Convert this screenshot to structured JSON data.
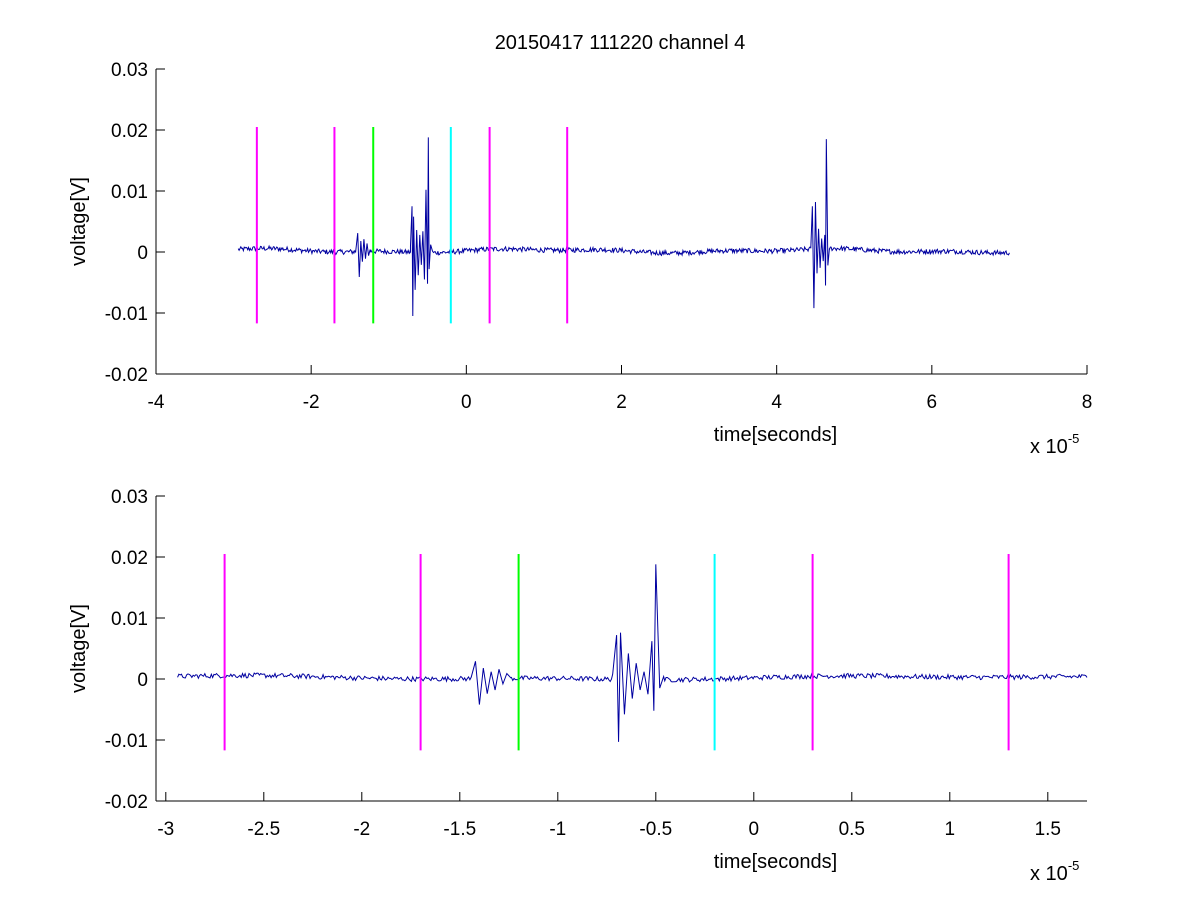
{
  "figure": {
    "title": "20150417 111220 channel 4"
  },
  "chart_data": [
    {
      "type": "line",
      "xlabel": "time[seconds]",
      "ylabel": "voltage[V]",
      "x_multiplier_label": "x 10",
      "x_multiplier_exponent": "-5",
      "xlim": [
        -4,
        8
      ],
      "ylim": [
        -0.02,
        0.03
      ],
      "x_ticks": [
        -4,
        -2,
        0,
        2,
        4,
        6,
        8
      ],
      "x_tick_labels": [
        "-4",
        "-2",
        "0",
        "2",
        "4",
        "6",
        "8"
      ],
      "y_ticks": [
        -0.02,
        -0.01,
        0,
        0.01,
        0.02,
        0.03
      ],
      "y_tick_labels": [
        "-0.02",
        "-0.01",
        "0",
        "0.01",
        "0.02",
        "0.03"
      ],
      "grid": false,
      "signal": {
        "color": "#0000a0",
        "x_range": [
          -2.94,
          7.0
        ],
        "baseline": 0.0002,
        "noise_amplitude": 0.0004,
        "bursts": [
          {
            "x": [
              -1.42,
              -1.4,
              -1.38,
              -1.36,
              -1.34,
              -1.32,
              -1.3,
              -1.28,
              -1.26,
              -1.24
            ],
            "y": [
              0.0008,
              0.0031,
              -0.0041,
              0.0018,
              -0.0016,
              0.0021,
              -0.0011,
              0.0014,
              -0.0006,
              0.0004
            ]
          },
          {
            "x": [
              -0.72,
              -0.7,
              -0.69,
              -0.68,
              -0.66,
              -0.64,
              -0.62,
              -0.6,
              -0.58,
              -0.56,
              -0.54,
              -0.52,
              -0.5,
              -0.49,
              -0.48,
              -0.46,
              -0.44
            ],
            "y": [
              0.0009,
              0.0075,
              -0.0105,
              0.0058,
              -0.0062,
              0.0036,
              -0.0038,
              0.0028,
              -0.0021,
              0.0034,
              -0.0045,
              0.0102,
              -0.0052,
              0.0188,
              -0.0028,
              0.0012,
              0.0003
            ]
          },
          {
            "x": [
              4.44,
              4.46,
              4.48,
              4.5,
              4.52,
              4.54,
              4.56,
              4.58,
              4.6,
              4.62,
              4.63,
              4.64,
              4.66,
              4.68
            ],
            "y": [
              0.0006,
              0.0075,
              -0.0092,
              0.0082,
              -0.0035,
              0.0038,
              -0.0026,
              0.0022,
              -0.0015,
              0.0028,
              -0.0055,
              0.0185,
              -0.0022,
              0.0006
            ]
          }
        ]
      },
      "markers": [
        {
          "x": -2.7,
          "y_range": [
            -0.0117,
            0.0205
          ],
          "color": "#ff00ff"
        },
        {
          "x": -1.7,
          "y_range": [
            -0.0117,
            0.0205
          ],
          "color": "#ff00ff"
        },
        {
          "x": -1.2,
          "y_range": [
            -0.0117,
            0.0205
          ],
          "color": "#00ff00"
        },
        {
          "x": -0.2,
          "y_range": [
            -0.0117,
            0.0205
          ],
          "color": "#00ffff"
        },
        {
          "x": 0.3,
          "y_range": [
            -0.0117,
            0.0205
          ],
          "color": "#ff00ff"
        },
        {
          "x": 1.3,
          "y_range": [
            -0.0117,
            0.0205
          ],
          "color": "#ff00ff"
        }
      ]
    },
    {
      "type": "line",
      "xlabel": "time[seconds]",
      "ylabel": "voltage[V]",
      "x_multiplier_label": "x 10",
      "x_multiplier_exponent": "-5",
      "xlim": [
        -3.05,
        1.7
      ],
      "ylim": [
        -0.02,
        0.03
      ],
      "x_ticks": [
        -3,
        -2.5,
        -2,
        -1.5,
        -1,
        -0.5,
        0,
        0.5,
        1,
        1.5
      ],
      "x_tick_labels": [
        "-3",
        "-2.5",
        "-2",
        "-1.5",
        "-1",
        "-0.5",
        "0",
        "0.5",
        "1",
        "1.5"
      ],
      "y_ticks": [
        -0.02,
        -0.01,
        0,
        0.01,
        0.02,
        0.03
      ],
      "y_tick_labels": [
        "-0.02",
        "-0.01",
        "0",
        "0.01",
        "0.02",
        "0.03"
      ],
      "grid": false,
      "signal": {
        "color": "#0000a0",
        "x_range": [
          -2.94,
          1.7
        ],
        "baseline": 0.0002,
        "noise_amplitude": 0.0004,
        "bursts": [
          {
            "x": [
              -1.44,
              -1.42,
              -1.4,
              -1.38,
              -1.36,
              -1.34,
              -1.32,
              -1.3,
              -1.28,
              -1.26,
              -1.24
            ],
            "y": [
              0.0005,
              0.0029,
              -0.0042,
              0.0018,
              -0.0024,
              0.0012,
              -0.0018,
              0.0016,
              -0.0008,
              0.0009,
              0.0002
            ]
          },
          {
            "x": [
              -0.72,
              -0.7,
              -0.69,
              -0.68,
              -0.66,
              -0.64,
              -0.62,
              -0.6,
              -0.58,
              -0.56,
              -0.54,
              -0.52,
              -0.51,
              -0.5,
              -0.48,
              -0.46
            ],
            "y": [
              0.0008,
              0.0072,
              -0.0103,
              0.0076,
              -0.0058,
              0.0042,
              -0.0032,
              0.0026,
              -0.0018,
              0.0012,
              -0.0025,
              0.0062,
              -0.0052,
              0.0188,
              -0.0015,
              0.0004
            ]
          }
        ]
      },
      "markers": [
        {
          "x": -2.7,
          "y_range": [
            -0.0117,
            0.0205
          ],
          "color": "#ff00ff"
        },
        {
          "x": -1.7,
          "y_range": [
            -0.0117,
            0.0205
          ],
          "color": "#ff00ff"
        },
        {
          "x": -1.2,
          "y_range": [
            -0.0117,
            0.0205
          ],
          "color": "#00ff00"
        },
        {
          "x": -0.2,
          "y_range": [
            -0.0117,
            0.0205
          ],
          "color": "#00ffff"
        },
        {
          "x": 0.3,
          "y_range": [
            -0.0117,
            0.0205
          ],
          "color": "#ff00ff"
        },
        {
          "x": 1.3,
          "y_range": [
            -0.0117,
            0.0205
          ],
          "color": "#ff00ff"
        }
      ]
    }
  ]
}
